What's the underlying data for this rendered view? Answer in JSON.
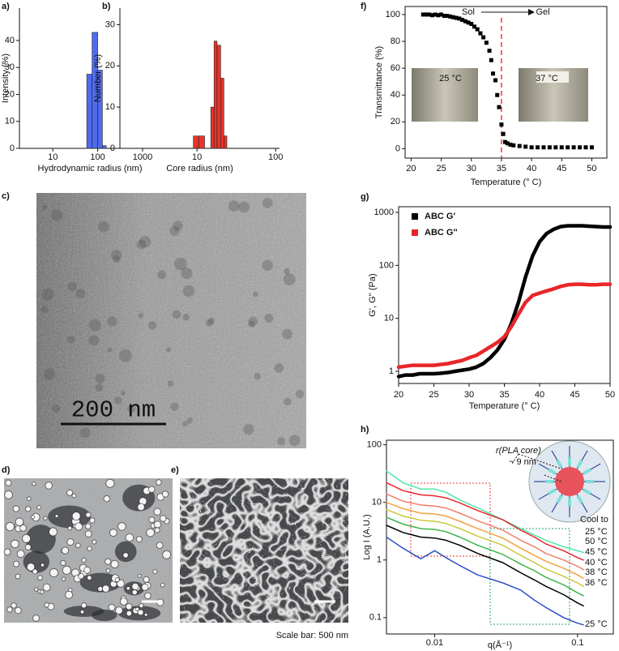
{
  "panel_labels": [
    "a)",
    "b)",
    "c)",
    "d)",
    "e)",
    "f)",
    "g)",
    "h)"
  ],
  "image_texts": {
    "tem_scale": "200 nm",
    "scale_note": "Scale bar: 500 nm"
  },
  "chart_data": [
    {
      "type": "histogram",
      "xscale": "log",
      "xlabel": "Hydrodynamic radius (nm)",
      "ylabel": "Intensity (%)",
      "bins": [
        57,
        75,
        100,
        127,
        155
      ],
      "values": [
        27.5,
        43,
        29,
        1
      ],
      "color": "#4f6bed",
      "xlim": [
        1.8,
        2500
      ],
      "xticks": [
        10,
        100,
        1000
      ],
      "ylim": [
        0,
        52
      ],
      "yticks": [
        0,
        10,
        20,
        30,
        40
      ]
    },
    {
      "type": "histogram",
      "xscale": "log",
      "xlabel": "Core radius (nm)",
      "ylabel": "Number (%)",
      "bins": [
        9,
        10.5,
        12.5,
        15,
        16.5,
        18,
        20,
        22,
        24
      ],
      "values": [
        3,
        3,
        0,
        10,
        26,
        25,
        17,
        3
      ],
      "color": "#e8342a",
      "xlim": [
        1.05,
        112
      ],
      "xticks": [
        10,
        100
      ],
      "ylim": [
        0,
        34
      ],
      "yticks": [
        0,
        10,
        20,
        30
      ]
    },
    {
      "type": "scatter",
      "frame": true,
      "xlabel": "Temperature (° C)",
      "ylabel": "Transmittance (%)",
      "annotations": [
        "Sol",
        "Gel",
        "25 °C",
        "37 °C"
      ],
      "reference_line_x": 35,
      "reference_color": "#e53935",
      "color": "#000000",
      "x": [
        22,
        22.5,
        23,
        23.5,
        24,
        24.5,
        25,
        25.5,
        26,
        26.5,
        27,
        27.5,
        28,
        28.5,
        29,
        29.5,
        30,
        30.5,
        31,
        31.5,
        32,
        32.5,
        33,
        33.3,
        33.6,
        34,
        34.3,
        34.6,
        35,
        35.3,
        35.6,
        36,
        36.5,
        37,
        38,
        39,
        40,
        41,
        42,
        43,
        44,
        45,
        46,
        47,
        48,
        49,
        50
      ],
      "values": [
        100,
        100,
        100,
        99.5,
        100,
        99.5,
        100,
        99,
        99,
        98.5,
        98,
        97.5,
        97,
        96,
        95,
        94,
        93,
        91,
        89,
        86,
        83,
        79,
        73,
        66,
        56,
        51,
        40,
        31,
        18,
        11,
        5,
        4,
        3,
        2.5,
        2,
        1.5,
        1,
        1,
        1,
        1,
        1,
        1,
        1,
        1,
        1,
        1,
        1
      ],
      "xlim": [
        19,
        52.5
      ],
      "xticks": [
        20,
        25,
        30,
        35,
        40,
        45,
        50
      ],
      "ylim": [
        -7,
        106
      ],
      "yticks": [
        0,
        20,
        40,
        60,
        80,
        100
      ]
    },
    {
      "type": "line",
      "frame": true,
      "yscale": "log",
      "legend": "upper left",
      "xlabel": "Temperature (° C)",
      "ylabel": "G', G'' (Pa)",
      "x": [
        20,
        21,
        22,
        23,
        24,
        25,
        26,
        27,
        28,
        29,
        30,
        31,
        32,
        33,
        34,
        35,
        36,
        37,
        38,
        39,
        40,
        41,
        42,
        43,
        44,
        45,
        46,
        47,
        48,
        49,
        50
      ],
      "series": [
        {
          "name": "ABC G'",
          "color": "#000000",
          "values": [
            0.8,
            0.85,
            0.85,
            0.9,
            0.9,
            0.9,
            0.92,
            0.95,
            1.0,
            1.05,
            1.1,
            1.2,
            1.4,
            1.8,
            2.5,
            4,
            8,
            20,
            60,
            150,
            280,
            400,
            480,
            540,
            560,
            560,
            560,
            550,
            540,
            530,
            530
          ]
        },
        {
          "name": "ABC G''",
          "color": "#e8262a",
          "values": [
            1.2,
            1.25,
            1.3,
            1.3,
            1.3,
            1.3,
            1.35,
            1.4,
            1.5,
            1.6,
            1.8,
            2.0,
            2.4,
            2.9,
            3.5,
            4.5,
            7,
            12,
            20,
            27,
            30,
            33,
            36,
            40,
            43,
            44,
            44,
            43,
            43,
            44,
            44
          ]
        }
      ],
      "xlim": [
        20,
        50
      ],
      "xticks": [
        20,
        25,
        30,
        35,
        40,
        45,
        50
      ],
      "ylim": [
        0.59,
        1280
      ],
      "yticks": [
        1,
        10,
        100,
        1000
      ]
    },
    {
      "type": "line",
      "frame": true,
      "xscale": "log",
      "yscale": "log",
      "xlabel": "q(Å⁻¹)",
      "ylabel": "Log I (A.U.)",
      "annotations": [
        "Cool to",
        "r(PLA core)",
        "~ 9 nm"
      ],
      "x": [
        0.0046,
        0.006,
        0.008,
        0.01,
        0.012,
        0.015,
        0.02,
        0.03,
        0.04,
        0.05,
        0.06,
        0.08,
        0.1,
        0.11
      ],
      "series": [
        {
          "name": "25 °C",
          "color": "#4de8a8",
          "values": [
            35,
            22,
            17,
            17,
            15,
            11,
            8,
            5,
            3.5,
            2.7,
            2.2,
            1.7,
            1.45,
            1.35
          ]
        },
        {
          "name": "50 °C",
          "color": "#e8262a",
          "values": [
            22,
            16,
            13.5,
            13,
            12,
            9.8,
            7.2,
            5,
            3.3,
            2.5,
            1.9,
            1.45,
            1.1,
            1.0
          ]
        },
        {
          "name": "45 °C",
          "color": "#f37d6d",
          "values": [
            14,
            10.5,
            9,
            8.6,
            8,
            6.5,
            4.8,
            3.3,
            2.2,
            1.7,
            1.3,
            1.0,
            0.78,
            0.68
          ]
        },
        {
          "name": "40 °C",
          "color": "#f5a040",
          "values": [
            10,
            7.8,
            6.5,
            6.3,
            5.8,
            4.7,
            3.5,
            2.4,
            1.6,
            1.2,
            0.95,
            0.72,
            0.55,
            0.48
          ]
        },
        {
          "name": "38 °C",
          "color": "#c8c83c",
          "values": [
            7.5,
            5.8,
            4.9,
            4.7,
            4.3,
            3.5,
            2.6,
            1.8,
            1.2,
            0.9,
            0.7,
            0.52,
            0.4,
            0.35
          ]
        },
        {
          "color": "#3cb44b",
          "values": [
            5.5,
            4.2,
            3.5,
            3.4,
            3.1,
            2.5,
            1.8,
            1.25,
            0.85,
            0.65,
            0.5,
            0.37,
            0.27,
            0.24
          ]
        },
        {
          "name": "36 °C",
          "color": "#000000",
          "values": [
            4,
            3,
            2.5,
            2.4,
            2.2,
            1.8,
            1.3,
            0.9,
            0.6,
            0.45,
            0.35,
            0.25,
            0.18,
            0.16
          ]
        },
        {
          "name": "25 °C",
          "color": "#3050c8",
          "values": [
            2.5,
            1.6,
            1.05,
            1.45,
            1.1,
            0.8,
            0.55,
            0.4,
            0.3,
            0.2,
            0.15,
            0.1,
            0.08,
            0.075
          ]
        }
      ],
      "xlim": [
        0.0046,
        0.178
      ],
      "xticks": [
        0.01,
        0.1
      ],
      "ylim": [
        0.052,
        120
      ],
      "yticks": [
        0.1,
        1,
        10,
        100
      ]
    }
  ]
}
